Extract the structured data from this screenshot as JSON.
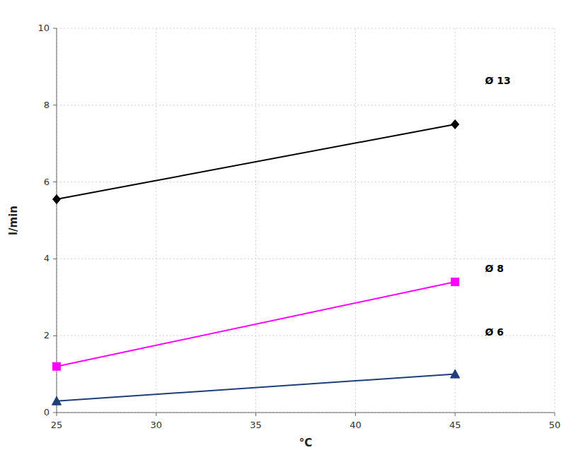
{
  "chart_data": {
    "type": "line",
    "x_label": "°C",
    "y_label": "l/min",
    "x": [
      25,
      45
    ],
    "series": [
      {
        "color": "#000000",
        "marker": "diamond",
        "values": [
          5.55,
          7.5
        ]
      },
      {
        "color": "#ff00ff",
        "marker": "square",
        "values": [
          1.2,
          3.4
        ]
      },
      {
        "color": "#1f3f7a",
        "marker": "triangle",
        "values": [
          0.3,
          1.0
        ]
      }
    ],
    "annotations": [
      {
        "text": "Ø 13",
        "x": 46.5,
        "y": 8.55
      },
      {
        "text": "Ø 8",
        "x": 46.5,
        "y": 3.65
      },
      {
        "text": "Ø 6",
        "x": 46.5,
        "y": 2.0
      }
    ],
    "xlim": [
      25,
      50
    ],
    "ylim": [
      0,
      10
    ],
    "xticks": [
      25,
      30,
      35,
      40,
      45,
      50
    ],
    "yticks": [
      0,
      2,
      4,
      6,
      8,
      10
    ],
    "grid": true
  }
}
